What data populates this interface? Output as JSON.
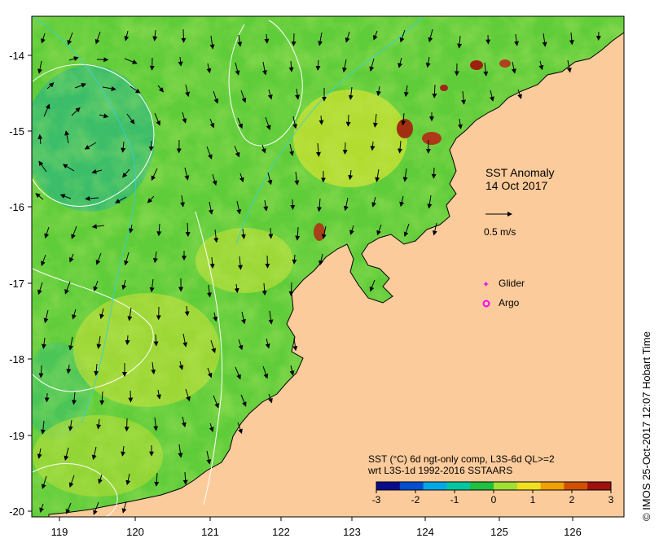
{
  "map": {
    "title": "SST Anomaly",
    "date": "14 Oct 2017",
    "vector_scale_label": "0.5 m/s",
    "x_ticks": [
      "119",
      "120",
      "121",
      "122",
      "123",
      "124",
      "125",
      "126"
    ],
    "y_ticks": [
      "-14",
      "-15",
      "-16",
      "-17",
      "-18",
      "-19",
      "-20"
    ],
    "legend": {
      "glider_label": "Glider",
      "argo_label": "Argo",
      "glider_color": "#e020e0",
      "argo_color": "#ff00ff"
    },
    "caption_line1": "SST (°C) 6d ngt-only comp, L3S-6d QL>=2",
    "caption_line2": "wrt L3S-1d 1992-2016 SSTAARS",
    "colorbar": {
      "ticks": [
        "-3",
        "-2",
        "-1",
        "0",
        "1",
        "2",
        "3"
      ],
      "colors": [
        "#0a0a8c",
        "#0050d0",
        "#00a8e8",
        "#00c8a0",
        "#20c040",
        "#a0e030",
        "#f0e020",
        "#f0a000",
        "#d05000",
        "#a01010"
      ]
    },
    "credit": "© IMOS 25-Oct-2017 12:07 Hobart Time",
    "land_color": "#fccb9b",
    "ocean_color": "#6cd23c"
  }
}
